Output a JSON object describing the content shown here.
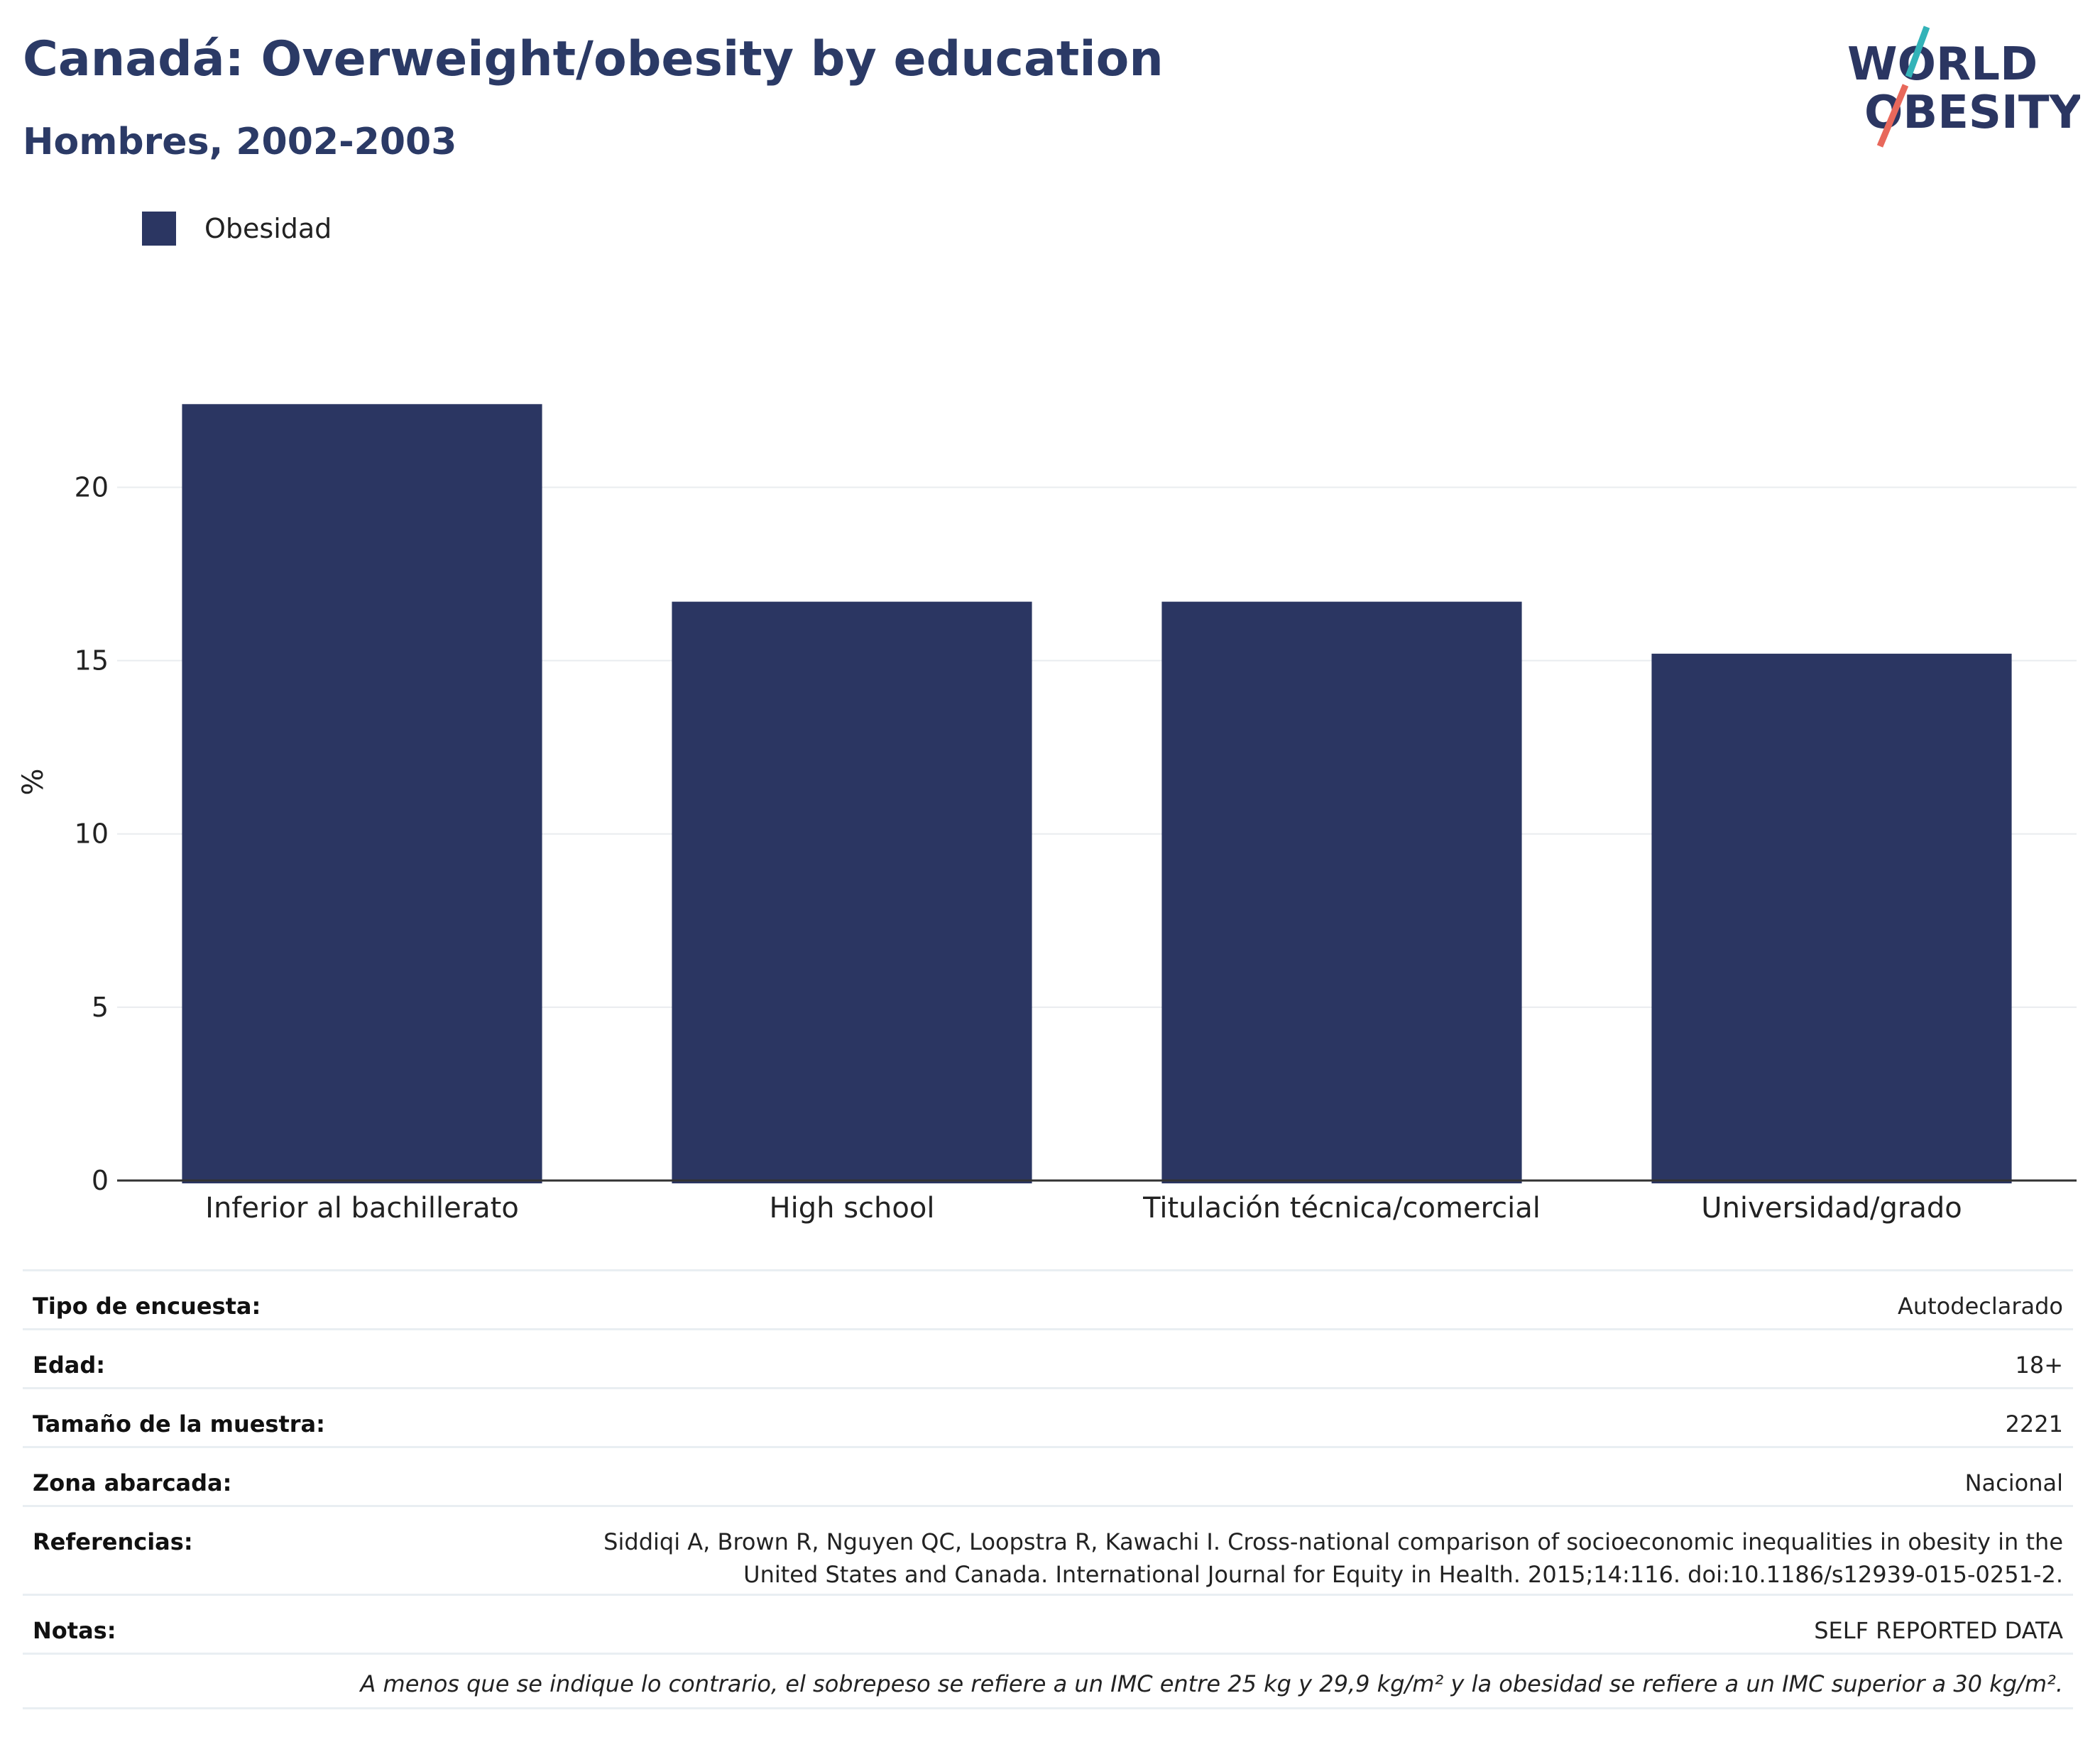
{
  "header": {
    "title": "Canadá: Overweight/obesity by education",
    "subtitle": "Hombres, 2002-2003",
    "logo_text_line1": "WORLD",
    "logo_text_line2": "OBESITY"
  },
  "legend": {
    "items": [
      {
        "label": "Obesidad",
        "color": "#2b3662"
      }
    ]
  },
  "chart_data": {
    "type": "bar",
    "categories": [
      "Inferior al bachillerato",
      "High school",
      "Titulación técnica/comercial",
      "Universidad/grado"
    ],
    "series": [
      {
        "name": "Obesidad",
        "values": [
          22.4,
          16.7,
          16.7,
          15.2
        ],
        "color": "#2b3662"
      }
    ],
    "ylabel": "%",
    "xlabel": "",
    "ylim": [
      0,
      23
    ],
    "yticks": [
      0,
      5,
      10,
      15,
      20
    ],
    "grid": true,
    "legend_position": "top-left"
  },
  "colors": {
    "bar": "#2b3662",
    "title": "#2b3a66",
    "logo_navy": "#2b3662",
    "logo_teal": "#33b3b8",
    "logo_coral": "#e8685b"
  },
  "meta": {
    "rows": [
      {
        "key": "Tipo de encuesta:",
        "value": "Autodeclarado"
      },
      {
        "key": "Edad:",
        "value": "18+"
      },
      {
        "key": "Tamaño de la muestra:",
        "value": "2221"
      },
      {
        "key": "Zona abarcada:",
        "value": "Nacional"
      },
      {
        "key": "Referencias:",
        "value": "Siddiqi A, Brown R, Nguyen QC, Loopstra R, Kawachi I. Cross-national comparison of socioeconomic inequalities in obesity in the United States and Canada. International Journal for Equity in Health. 2015;14:116. doi:10.1186/s12939-015-0251-2."
      },
      {
        "key": "Notas:",
        "value": "SELF REPORTED DATA"
      }
    ],
    "footnote": "A menos que se indique lo contrario, el sobrepeso se refiere a un IMC entre 25 kg y 29,9 kg/m² y la obesidad se refiere a un IMC superior a 30 kg/m²."
  }
}
